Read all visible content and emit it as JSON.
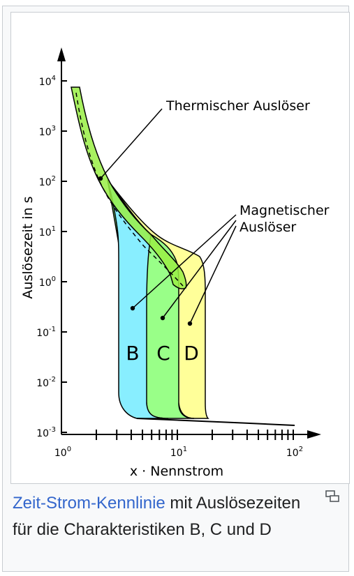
{
  "diagram": {
    "ylabel": "Auslösezeit in s",
    "xlabel": "x · Nennstrom",
    "y_ticks": [
      {
        "base": "10",
        "exp": "4"
      },
      {
        "base": "10",
        "exp": "3"
      },
      {
        "base": "10",
        "exp": "2"
      },
      {
        "base": "10",
        "exp": "1"
      },
      {
        "base": "10",
        "exp": "0"
      },
      {
        "base": "10",
        "exp": "-1"
      },
      {
        "base": "10",
        "exp": "-2"
      },
      {
        "base": "10",
        "exp": "-3"
      }
    ],
    "x_ticks": [
      {
        "base": "10",
        "exp": "0"
      },
      {
        "base": "10",
        "exp": "1"
      },
      {
        "base": "10",
        "exp": "2"
      }
    ],
    "annotations": {
      "thermal": "Thermischer Auslöser",
      "magnetic_line1": "Magnetischer",
      "magnetic_line2": "Auslöser"
    },
    "curves": {
      "b": "B",
      "c": "C",
      "d": "D"
    },
    "colors": {
      "thermal_band": "#99ee44",
      "region_b": "#88eeff",
      "region_c": "#99ff88",
      "region_d": "#ffff99"
    }
  },
  "caption": {
    "link": "Zeit-Strom-Kennlinie",
    "rest": " mit Auslösezeiten für die Charakteristiken B, C und D"
  },
  "icons": {
    "enlarge": "enlarge-icon"
  }
}
